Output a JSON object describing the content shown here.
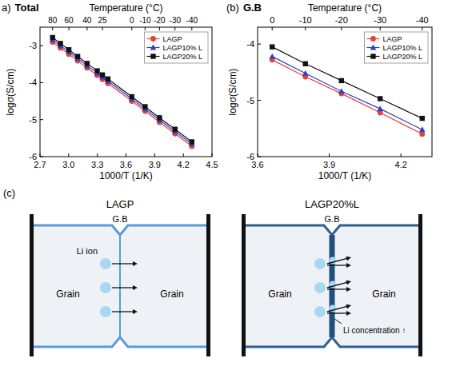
{
  "chart_data": [
    {
      "type": "line",
      "panel": "a)",
      "title": "Total",
      "xlabel": "1000/T (1/K)",
      "ylabel": "logσ(S/cm)",
      "x2label": "Temperature (°C)",
      "x": [
        2.832,
        2.914,
        3.002,
        3.094,
        3.193,
        3.299,
        3.354,
        3.411,
        3.661,
        3.8,
        3.951,
        4.113,
        4.289
      ],
      "series": [
        {
          "name": "LAGP",
          "color": "#e8413c",
          "marker": "circle",
          "line_style": "solid",
          "values": [
            -2.9,
            -3.06,
            -3.23,
            -3.41,
            -3.6,
            -3.8,
            -3.91,
            -4.02,
            -4.5,
            -4.77,
            -5.07,
            -5.38,
            -5.72
          ]
        },
        {
          "name": "LAGP10% L",
          "color": "#2e3fc8",
          "marker": "triangle",
          "line_style": "solid",
          "values": [
            -2.84,
            -3.0,
            -3.17,
            -3.35,
            -3.54,
            -3.74,
            -3.85,
            -3.96,
            -4.44,
            -4.71,
            -5.01,
            -5.32,
            -5.66
          ]
        },
        {
          "name": "LAGP20% L",
          "color": "#111111",
          "marker": "square",
          "line_style": "solid",
          "values": [
            -2.78,
            -2.94,
            -3.11,
            -3.29,
            -3.48,
            -3.68,
            -3.79,
            -3.9,
            -4.38,
            -4.65,
            -4.95,
            -5.26,
            -5.6
          ]
        }
      ],
      "xlim": [
        2.7,
        4.5
      ],
      "xticks": [
        2.7,
        {
          "value": 3,
          "label": "3.0"
        },
        3.3,
        3.6,
        3.9,
        4.2,
        4.5
      ],
      "x2ticks": [
        {
          "value": 2.832,
          "label": "80"
        },
        {
          "value": 3.002,
          "label": "60"
        },
        {
          "value": 3.193,
          "label": "40"
        },
        {
          "value": 3.354,
          "label": "25"
        },
        {
          "value": 3.661,
          "label": "0"
        },
        {
          "value": 3.8,
          "label": "-10"
        },
        {
          "value": 3.951,
          "label": "-20"
        },
        {
          "value": 4.113,
          "label": "-30"
        },
        {
          "value": 4.289,
          "label": "-40"
        }
      ],
      "ylim": [
        -6,
        -2.5
      ],
      "yticks": [
        -6,
        -5,
        -4,
        -3
      ],
      "legend": "upper right"
    },
    {
      "type": "line",
      "panel": "(b)",
      "title": "G.B",
      "xlabel": "1000/T (1/K)",
      "ylabel": "logσ(S/cm)",
      "x2label": "Temperature (°C)",
      "x": [
        3.661,
        3.8,
        3.951,
        4.113,
        4.289
      ],
      "series": [
        {
          "name": "LAGP",
          "color": "#e8413c",
          "marker": "circle",
          "line_style": "solid",
          "values": [
            -4.28,
            -4.58,
            -4.88,
            -5.22,
            -5.6
          ]
        },
        {
          "name": "LAGP10% L",
          "color": "#2e3fc8",
          "marker": "triangle",
          "line_style": "solid",
          "values": [
            -4.22,
            -4.52,
            -4.84,
            -5.15,
            -5.52
          ]
        },
        {
          "name": "LAGP20% L",
          "color": "#111111",
          "marker": "square",
          "line_style": "solid",
          "values": [
            -4.05,
            -4.35,
            -4.65,
            -4.97,
            -5.32
          ]
        }
      ],
      "xlim": [
        3.6,
        4.33
      ],
      "xticks": [
        3.6,
        3.9,
        4.2
      ],
      "x2ticks": [
        {
          "value": 3.661,
          "label": "0"
        },
        {
          "value": 3.8,
          "label": "-10"
        },
        {
          "value": 3.951,
          "label": "-20"
        },
        {
          "value": 4.113,
          "label": "-30"
        },
        {
          "value": 4.289,
          "label": "-40"
        }
      ],
      "ylim": [
        -6,
        -3.7
      ],
      "yticks": [
        -6,
        -5,
        -4
      ],
      "legend": "upper right"
    }
  ],
  "diagram": {
    "label": "(c)",
    "panels": [
      {
        "title": "LAGP",
        "boundary_label": "G.B",
        "grain_labels": [
          "Grain",
          "Grain"
        ],
        "ion_label": "Li ion"
      },
      {
        "title": "LAGP20%L",
        "boundary_label": "G.B",
        "grain_labels": [
          "Grain",
          "Grain"
        ],
        "concentration_label": "Li concentration ↑"
      }
    ]
  }
}
